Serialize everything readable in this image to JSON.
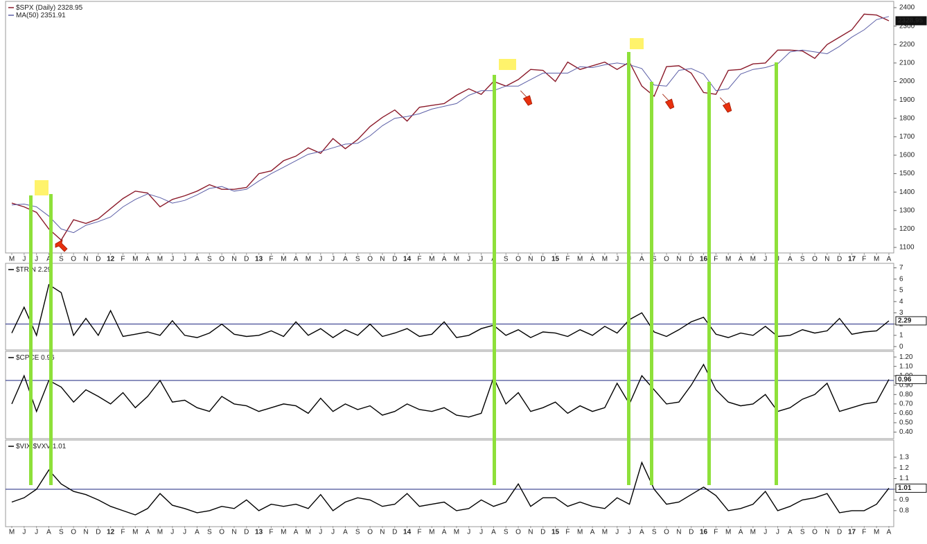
{
  "chart_data": [
    {
      "type": "line",
      "categories": [
        "M",
        "J",
        "J",
        "A",
        "S",
        "O",
        "N",
        "D",
        "12",
        "F",
        "M",
        "A",
        "M",
        "J",
        "J",
        "A",
        "S",
        "O",
        "N",
        "D",
        "13",
        "F",
        "M",
        "A",
        "M",
        "J",
        "J",
        "A",
        "S",
        "O",
        "N",
        "D",
        "14",
        "F",
        "M",
        "A",
        "M",
        "J",
        "J",
        "A",
        "S",
        "O",
        "N",
        "D",
        "15",
        "F",
        "M",
        "A",
        "M",
        "J",
        "J",
        "A",
        "S",
        "O",
        "N",
        "D",
        "16",
        "F",
        "M",
        "A",
        "M",
        "J",
        "J",
        "A",
        "S",
        "O",
        "N",
        "D",
        "17",
        "F",
        "M",
        "A"
      ],
      "ylim": [
        1070,
        2434
      ],
      "yticks": [
        1100,
        1200,
        1300,
        1400,
        1500,
        1600,
        1700,
        1800,
        1900,
        2000,
        2100,
        2200,
        2300,
        2400
      ],
      "series": [
        {
          "name": "$SPX (Daily)",
          "color": "#8b1a2a",
          "values": [
            1340,
            1320,
            1290,
            1200,
            1140,
            1250,
            1230,
            1255,
            1310,
            1365,
            1405,
            1395,
            1320,
            1360,
            1380,
            1405,
            1440,
            1415,
            1415,
            1425,
            1500,
            1515,
            1570,
            1595,
            1640,
            1610,
            1690,
            1635,
            1685,
            1755,
            1805,
            1845,
            1785,
            1860,
            1870,
            1880,
            1925,
            1960,
            1930,
            2000,
            1975,
            2010,
            2065,
            2060,
            2000,
            2105,
            2065,
            2085,
            2105,
            2065,
            2105,
            1975,
            1920,
            2080,
            2085,
            2045,
            1940,
            1930,
            2060,
            2065,
            2095,
            2100,
            2170,
            2170,
            2165,
            2125,
            2200,
            2240,
            2280,
            2365,
            2360,
            2328.95
          ]
        },
        {
          "name": "MA(50)",
          "color": "#5b5ea6",
          "values": [
            1330,
            1335,
            1320,
            1270,
            1200,
            1180,
            1220,
            1240,
            1265,
            1320,
            1360,
            1390,
            1370,
            1340,
            1355,
            1385,
            1420,
            1430,
            1405,
            1415,
            1460,
            1500,
            1535,
            1570,
            1605,
            1620,
            1640,
            1660,
            1665,
            1705,
            1760,
            1800,
            1810,
            1825,
            1850,
            1865,
            1880,
            1925,
            1950,
            1950,
            1975,
            1975,
            2010,
            2045,
            2045,
            2045,
            2080,
            2075,
            2090,
            2100,
            2090,
            2070,
            1980,
            1975,
            2060,
            2070,
            2040,
            1950,
            1960,
            2040,
            2065,
            2075,
            2095,
            2160,
            2170,
            2160,
            2150,
            2190,
            2240,
            2280,
            2335,
            2351.91
          ]
        }
      ]
    },
    {
      "type": "line",
      "ylim": [
        -0.3,
        7.4
      ],
      "yticks": [
        0,
        1,
        2,
        3,
        4,
        5,
        6,
        7
      ],
      "reference_line": 2,
      "series": [
        {
          "name": "$TRIN",
          "color": "#000000",
          "values": [
            1.2,
            3.5,
            1.0,
            5.5,
            4.8,
            1.0,
            2.5,
            1.0,
            3.2,
            0.9,
            1.1,
            1.3,
            1.0,
            2.3,
            1.0,
            0.8,
            1.2,
            2.0,
            1.1,
            0.9,
            1.0,
            1.4,
            0.9,
            2.2,
            1.0,
            1.6,
            0.8,
            1.5,
            1.0,
            2.0,
            0.9,
            1.2,
            1.6,
            0.9,
            1.1,
            2.2,
            0.8,
            1.0,
            1.6,
            1.9,
            1.0,
            1.5,
            0.8,
            1.3,
            1.2,
            0.9,
            1.5,
            1.0,
            1.8,
            1.2,
            2.4,
            3.0,
            1.3,
            0.9,
            1.5,
            2.2,
            2.6,
            1.1,
            0.8,
            1.2,
            1.0,
            1.8,
            0.9,
            1.0,
            1.5,
            1.2,
            1.4,
            2.5,
            1.1,
            1.3,
            1.4,
            2.29
          ]
        }
      ]
    },
    {
      "type": "line",
      "ylim": [
        0.33,
        1.26
      ],
      "yticks": [
        {
          "value": 0.4,
          "label": "0.40"
        },
        {
          "value": 0.5,
          "label": "0.50"
        },
        {
          "value": 0.6,
          "label": "0.60"
        },
        {
          "value": 0.7,
          "label": "0.70"
        },
        {
          "value": 0.8,
          "label": "0.80"
        },
        {
          "value": 0.9,
          "label": "0.90"
        },
        {
          "value": 1,
          "label": "1.00"
        },
        {
          "value": 1.1,
          "label": "1.10"
        },
        {
          "value": 1.2,
          "label": "1.20"
        }
      ],
      "reference_line": 0.95,
      "series": [
        {
          "name": "$CPCE",
          "color": "#000000",
          "values": [
            0.7,
            1.0,
            0.62,
            0.95,
            0.88,
            0.72,
            0.85,
            0.78,
            0.7,
            0.82,
            0.66,
            0.78,
            0.95,
            0.72,
            0.74,
            0.66,
            0.62,
            0.78,
            0.7,
            0.68,
            0.62,
            0.66,
            0.7,
            0.68,
            0.6,
            0.76,
            0.62,
            0.7,
            0.64,
            0.68,
            0.58,
            0.62,
            0.7,
            0.64,
            0.62,
            0.66,
            0.58,
            0.56,
            0.6,
            0.98,
            0.7,
            0.82,
            0.62,
            0.66,
            0.72,
            0.6,
            0.68,
            0.62,
            0.66,
            0.92,
            0.7,
            1.0,
            0.85,
            0.7,
            0.72,
            0.9,
            1.12,
            0.85,
            0.72,
            0.68,
            0.7,
            0.8,
            0.62,
            0.66,
            0.75,
            0.8,
            0.92,
            0.62,
            0.66,
            0.7,
            0.72,
            0.96
          ]
        }
      ]
    },
    {
      "type": "line",
      "ylim": [
        0.65,
        1.46
      ],
      "yticks": [
        0.8,
        0.9,
        1,
        1.1,
        1.2,
        1.3
      ],
      "reference_line": 1,
      "series": [
        {
          "name": "$VIX:$VXV",
          "color": "#000000",
          "values": [
            0.88,
            0.92,
            1.0,
            1.18,
            1.05,
            0.98,
            0.95,
            0.9,
            0.84,
            0.8,
            0.76,
            0.82,
            0.96,
            0.85,
            0.82,
            0.78,
            0.8,
            0.84,
            0.82,
            0.9,
            0.8,
            0.86,
            0.84,
            0.86,
            0.82,
            0.95,
            0.8,
            0.88,
            0.92,
            0.9,
            0.84,
            0.86,
            0.96,
            0.84,
            0.86,
            0.88,
            0.8,
            0.82,
            0.9,
            0.84,
            0.88,
            1.05,
            0.84,
            0.92,
            0.92,
            0.84,
            0.88,
            0.84,
            0.82,
            0.92,
            0.86,
            1.25,
            1.0,
            0.86,
            0.88,
            0.95,
            1.02,
            0.94,
            0.8,
            0.82,
            0.86,
            0.98,
            0.8,
            0.84,
            0.9,
            0.92,
            0.96,
            0.78,
            0.8,
            0.8,
            0.86,
            1.01
          ]
        }
      ]
    }
  ]
}
